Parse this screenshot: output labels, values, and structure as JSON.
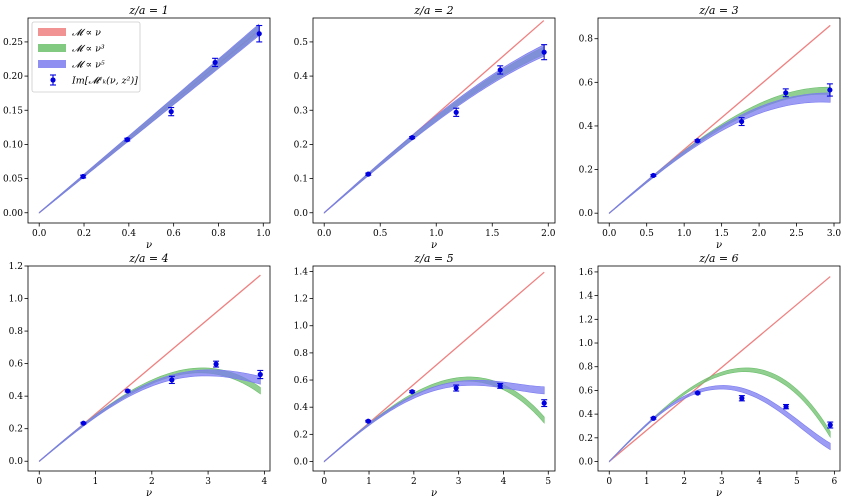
{
  "figure": {
    "xlabel": "ν",
    "colors": {
      "linear": "#f08080",
      "cubic": "#6cbf6c",
      "quintic": "#7b7bf0",
      "data": "#0000e0"
    },
    "legend": {
      "placement": "upper-left of first panel",
      "entries": [
        {
          "key": "linear",
          "label": "𝓜 ∝ ν"
        },
        {
          "key": "cubic",
          "label": "𝓜 ∝ ν³"
        },
        {
          "key": "quintic",
          "label": "𝓜 ∝ ν⁵"
        },
        {
          "key": "data",
          "label": "Im[𝓜ᵛₖ(ν, z²)]"
        }
      ]
    }
  },
  "chart_data": [
    {
      "type": "line",
      "title": "z/a = 1",
      "xlabel": "ν",
      "xlim": [
        -0.05,
        1.03
      ],
      "ylim": [
        -0.015,
        0.285
      ],
      "xticks": [
        0.0,
        0.2,
        0.4,
        0.6,
        0.8,
        1.0
      ],
      "xtick_labels": [
        "0.0",
        "0.2",
        "0.4",
        "0.6",
        "0.8",
        "1.0"
      ],
      "yticks": [
        0.0,
        0.05,
        0.1,
        0.15,
        0.2,
        0.25
      ],
      "ytick_labels": [
        "0.00",
        "0.05",
        "0.10",
        "0.15",
        "0.20",
        "0.25"
      ],
      "xmax_curve": 0.98,
      "series": [
        {
          "name": "𝓜 ∝ ν",
          "kind": "line",
          "color_key": "linear",
          "slope": 0.272
        },
        {
          "name": "𝓜 ∝ ν³",
          "kind": "band",
          "color_key": "cubic",
          "a": 0.272,
          "b": 0.001,
          "c": 0,
          "width": 0.006
        },
        {
          "name": "𝓜 ∝ ν⁵",
          "kind": "band",
          "color_key": "quintic",
          "a": 0.272,
          "b": 0.001,
          "c": 0,
          "width": 0.008
        },
        {
          "name": "Im[𝓜ᵛₖ(ν, z²)]",
          "kind": "errorbar",
          "color_key": "data",
          "x": [
            0.196,
            0.393,
            0.589,
            0.785,
            0.982
          ],
          "y": [
            0.053,
            0.107,
            0.148,
            0.22,
            0.262
          ],
          "err": [
            0.002,
            0.002,
            0.006,
            0.006,
            0.012
          ]
        }
      ]
    },
    {
      "type": "line",
      "title": "z/a = 2",
      "xlabel": "ν",
      "xlim": [
        -0.1,
        2.06
      ],
      "ylim": [
        -0.03,
        0.57
      ],
      "xticks": [
        0.0,
        0.5,
        1.0,
        1.5,
        2.0
      ],
      "xtick_labels": [
        "0.0",
        "0.5",
        "1.0",
        "1.5",
        "2.0"
      ],
      "yticks": [
        0.0,
        0.1,
        0.2,
        0.3,
        0.4,
        0.5
      ],
      "ytick_labels": [
        "0.0",
        "0.1",
        "0.2",
        "0.3",
        "0.4",
        "0.5"
      ],
      "xmax_curve": 1.96,
      "series": [
        {
          "name": "𝓜 ∝ ν",
          "kind": "line",
          "color_key": "linear",
          "slope": 0.287
        },
        {
          "name": "𝓜 ∝ ν³",
          "kind": "band",
          "color_key": "cubic",
          "a": 0.287,
          "b": -0.0117,
          "c": 0,
          "width": 0.01
        },
        {
          "name": "𝓜 ∝ ν⁵",
          "kind": "band",
          "color_key": "quintic",
          "a": 0.287,
          "b": -0.0117,
          "c": 0,
          "width": 0.016
        },
        {
          "name": "Im[𝓜ᵛₖ(ν, z²)]",
          "kind": "errorbar",
          "color_key": "data",
          "x": [
            0.393,
            0.785,
            1.178,
            1.571,
            1.963
          ],
          "y": [
            0.113,
            0.22,
            0.294,
            0.418,
            0.47
          ],
          "err": [
            0.003,
            0.003,
            0.012,
            0.012,
            0.022
          ]
        }
      ]
    },
    {
      "type": "line",
      "title": "z/a = 3",
      "xlabel": "ν",
      "xlim": [
        -0.15,
        3.08
      ],
      "ylim": [
        -0.045,
        0.895
      ],
      "xticks": [
        0.0,
        0.5,
        1.0,
        1.5,
        2.0,
        2.5,
        3.0
      ],
      "xtick_labels": [
        "0.0",
        "0.5",
        "1.0",
        "1.5",
        "2.0",
        "2.5",
        "3.0"
      ],
      "yticks": [
        0.0,
        0.2,
        0.4,
        0.6,
        0.8
      ],
      "ytick_labels": [
        "0.0",
        "0.2",
        "0.4",
        "0.6",
        "0.8"
      ],
      "xmax_curve": 2.95,
      "series": [
        {
          "name": "𝓜 ∝ ν",
          "kind": "line",
          "color_key": "linear",
          "slope": 0.292
        },
        {
          "name": "𝓜 ∝ ν³",
          "kind": "band",
          "color_key": "cubic",
          "a": 0.292,
          "b": -0.0117,
          "c": 0,
          "width": 0.015
        },
        {
          "name": "𝓜 ∝ ν⁵",
          "kind": "band",
          "color_key": "quintic",
          "a": 0.292,
          "b": -0.015,
          "c": 0.00024,
          "width": 0.02
        },
        {
          "name": "Im[𝓜ᵛₖ(ν, z²)]",
          "kind": "errorbar",
          "color_key": "data",
          "x": [
            0.589,
            1.178,
            1.767,
            2.356,
            2.945
          ],
          "y": [
            0.173,
            0.332,
            0.42,
            0.552,
            0.565
          ],
          "err": [
            0.004,
            0.005,
            0.018,
            0.018,
            0.028
          ]
        }
      ]
    },
    {
      "type": "line",
      "title": "z/a = 4",
      "xlabel": "ν",
      "xlim": [
        -0.2,
        4.1
      ],
      "ylim": [
        -0.06,
        1.2
      ],
      "xticks": [
        0,
        1,
        2,
        3,
        4
      ],
      "xtick_labels": [
        "0",
        "1",
        "2",
        "3",
        "4"
      ],
      "yticks": [
        0.0,
        0.2,
        0.4,
        0.6,
        0.8,
        1.0,
        1.2
      ],
      "ytick_labels": [
        "0.0",
        "0.2",
        "0.4",
        "0.6",
        "0.8",
        "1.0",
        "1.2"
      ],
      "xmax_curve": 3.93,
      "series": [
        {
          "name": "𝓜 ∝ ν",
          "kind": "line",
          "color_key": "linear",
          "slope": 0.291
        },
        {
          "name": "𝓜 ∝ ν³",
          "kind": "band",
          "color_key": "cubic",
          "a": 0.291,
          "b": -0.0117,
          "c": 0,
          "width": 0.018
        },
        {
          "name": "𝓜 ∝ ν⁵",
          "kind": "band",
          "color_key": "quintic",
          "a": 0.291,
          "b": -0.0144,
          "c": 0.000243,
          "width": 0.022
        },
        {
          "name": "Im[𝓜ᵛₖ(ν, z²)]",
          "kind": "errorbar",
          "color_key": "data",
          "x": [
            0.785,
            1.571,
            2.356,
            3.142,
            3.927
          ],
          "y": [
            0.234,
            0.432,
            0.5,
            0.597,
            0.533
          ],
          "err": [
            0.005,
            0.006,
            0.022,
            0.018,
            0.025
          ]
        }
      ]
    },
    {
      "type": "line",
      "title": "z/a = 5",
      "xlabel": "ν",
      "xlim": [
        -0.25,
        5.15
      ],
      "ylim": [
        -0.07,
        1.44
      ],
      "xticks": [
        0,
        1,
        2,
        3,
        4,
        5
      ],
      "xtick_labels": [
        "0",
        "1",
        "2",
        "3",
        "4",
        "5"
      ],
      "yticks": [
        0.0,
        0.2,
        0.4,
        0.6,
        0.8,
        1.0,
        1.2,
        1.4
      ],
      "ytick_labels": [
        "0.0",
        "0.2",
        "0.4",
        "0.6",
        "0.8",
        "1.0",
        "1.2",
        "1.4"
      ],
      "xmax_curve": 4.91,
      "series": [
        {
          "name": "𝓜 ∝ ν",
          "kind": "line",
          "color_key": "linear",
          "slope": 0.284
        },
        {
          "name": "𝓜 ∝ ν³",
          "kind": "band",
          "color_key": "cubic",
          "a": 0.284,
          "b": -0.0092,
          "c": 0,
          "width": 0.02
        },
        {
          "name": "𝓜 ∝ ν⁵",
          "kind": "band",
          "color_key": "quintic",
          "a": 0.284,
          "b": -0.0121,
          "c": 0.000197,
          "width": 0.024
        },
        {
          "name": "Im[𝓜ᵛₖ(ν, z²)]",
          "kind": "errorbar",
          "color_key": "data",
          "x": [
            0.982,
            1.963,
            2.945,
            3.927,
            4.909
          ],
          "y": [
            0.297,
            0.514,
            0.541,
            0.557,
            0.43
          ],
          "err": [
            0.006,
            0.007,
            0.022,
            0.018,
            0.025
          ]
        }
      ]
    },
    {
      "type": "line",
      "title": "z/a = 6",
      "xlabel": "ν",
      "xlim": [
        -0.3,
        6.15
      ],
      "ylim": [
        -0.08,
        1.65
      ],
      "xticks": [
        0,
        1,
        2,
        3,
        4,
        5,
        6
      ],
      "xtick_labels": [
        "0",
        "1",
        "2",
        "3",
        "4",
        "5",
        "6"
      ],
      "yticks": [
        0.0,
        0.2,
        0.4,
        0.6,
        0.8,
        1.0,
        1.2,
        1.4,
        1.6
      ],
      "ytick_labels": [
        "0.0",
        "0.2",
        "0.4",
        "0.6",
        "0.8",
        "1.0",
        "1.2",
        "1.4",
        "1.6"
      ],
      "xmax_curve": 5.89,
      "series": [
        {
          "name": "𝓜 ∝ ν",
          "kind": "line",
          "color_key": "linear",
          "slope": 0.265
        },
        {
          "name": "𝓜 ∝ ν³",
          "kind": "band",
          "color_key": "cubic",
          "a": 0.32,
          "b": -0.0081,
          "c": 0,
          "width": 0.022
        },
        {
          "name": "𝓜 ∝ ν⁵",
          "kind": "band",
          "color_key": "quintic",
          "a": 0.326,
          "b": -0.0145,
          "c": 0.000165,
          "width": 0.025
        },
        {
          "name": "Im[𝓜ᵛₖ(ν, z²)]",
          "kind": "errorbar",
          "color_key": "data",
          "x": [
            1.178,
            2.356,
            3.534,
            4.712,
            5.89
          ],
          "y": [
            0.365,
            0.578,
            0.534,
            0.463,
            0.308
          ],
          "err": [
            0.007,
            0.008,
            0.022,
            0.018,
            0.025
          ]
        }
      ]
    }
  ]
}
